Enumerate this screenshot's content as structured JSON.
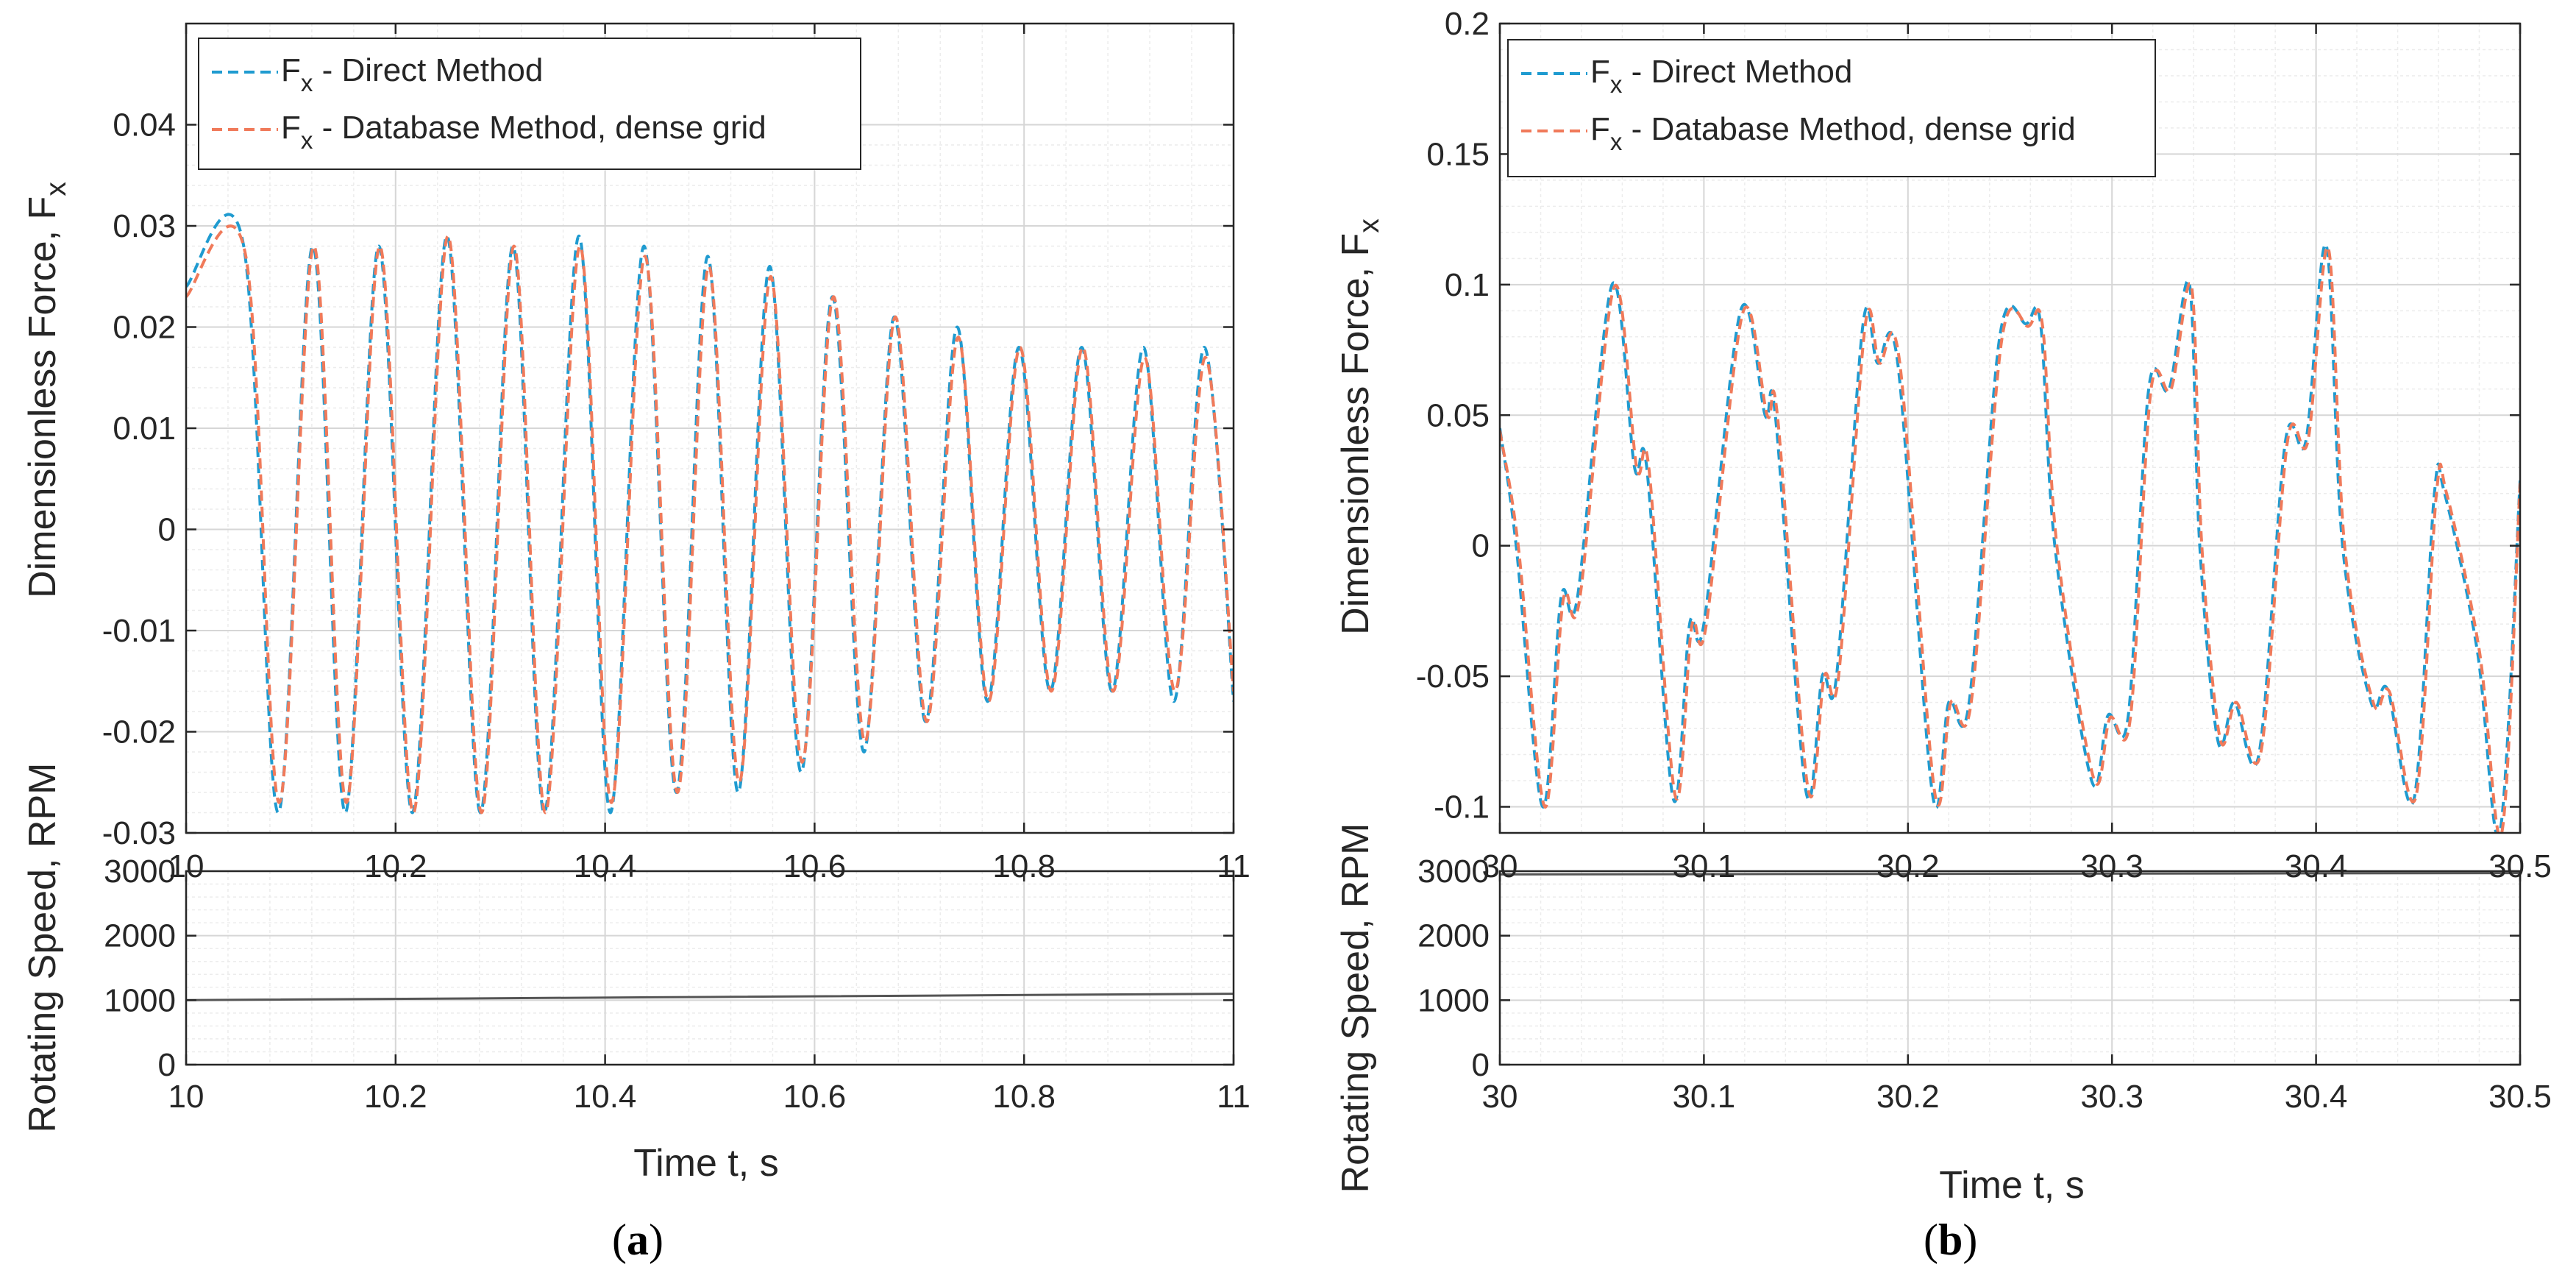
{
  "colors": {
    "direct": "#1f9bd0",
    "database": "#f07a5a",
    "rpm": "#555555",
    "grid_minor": "#ececec",
    "grid_major": "#d6d6d6",
    "axis": "#262626"
  },
  "chart_data": [
    {
      "id": "a",
      "caption": "(a)",
      "caption_letter": "a",
      "force": {
        "type": "line",
        "xlim": [
          10,
          11
        ],
        "ylim": [
          -0.03,
          0.05
        ],
        "xticks": [
          "10",
          "10.2",
          "10.4",
          "10.6",
          "10.8",
          "11"
        ],
        "xtick_values": [
          10,
          10.2,
          10.4,
          10.6,
          10.8,
          11
        ],
        "yticks": [
          "-0.03",
          "-0.02",
          "-0.01",
          "0",
          "0.01",
          "0.02",
          "0.03",
          "0.04"
        ],
        "ytick_values": [
          -0.03,
          -0.02,
          -0.01,
          0,
          0.01,
          0.02,
          0.03,
          0.04
        ],
        "ylabel": "Dimensionless Force, F",
        "ylabel_sub": "x",
        "legend": {
          "placement": "top-left",
          "entries": [
            {
              "prefix": "F",
              "sub": "x",
              "text": " - Direct Method",
              "series": "direct"
            },
            {
              "prefix": "F",
              "sub": "x",
              "text": " - Database Method, dense grid",
              "series": "database"
            }
          ]
        },
        "series": [
          {
            "name": "Direct Method",
            "color_key": "direct",
            "x": [
              10.0,
              10.055,
              10.088,
              10.121,
              10.152,
              10.184,
              10.216,
              10.249,
              10.281,
              10.312,
              10.342,
              10.375,
              10.405,
              10.437,
              10.468,
              10.498,
              10.527,
              10.557,
              10.587,
              10.617,
              10.647,
              10.676,
              10.706,
              10.736,
              10.765,
              10.795,
              10.825,
              10.855,
              10.884,
              10.914,
              10.943,
              10.972,
              11.0
            ],
            "y": [
              0.024,
              0.028,
              -0.028,
              0.028,
              -0.028,
              0.028,
              -0.028,
              0.029,
              -0.028,
              0.028,
              -0.028,
              0.029,
              -0.028,
              0.028,
              -0.026,
              0.027,
              -0.026,
              0.026,
              -0.024,
              0.023,
              -0.022,
              0.021,
              -0.019,
              0.02,
              -0.017,
              0.018,
              -0.016,
              0.018,
              -0.016,
              0.018,
              -0.017,
              0.018,
              -0.017
            ]
          },
          {
            "name": "Database Method, dense grid",
            "color_key": "database",
            "x": [
              10.0,
              10.057,
              10.089,
              10.122,
              10.153,
              10.185,
              10.217,
              10.25,
              10.282,
              10.313,
              10.343,
              10.376,
              10.406,
              10.438,
              10.469,
              10.499,
              10.528,
              10.558,
              10.588,
              10.618,
              10.648,
              10.677,
              10.707,
              10.737,
              10.766,
              10.796,
              10.826,
              10.856,
              10.885,
              10.915,
              10.944,
              10.973,
              11.0
            ],
            "y": [
              0.023,
              0.027,
              -0.027,
              0.028,
              -0.027,
              0.028,
              -0.028,
              0.029,
              -0.028,
              0.028,
              -0.028,
              0.028,
              -0.027,
              0.027,
              -0.026,
              0.026,
              -0.025,
              0.025,
              -0.023,
              0.023,
              -0.021,
              0.021,
              -0.019,
              0.019,
              -0.017,
              0.018,
              -0.016,
              0.018,
              -0.016,
              0.017,
              -0.016,
              0.017,
              -0.016
            ]
          }
        ]
      },
      "rpm": {
        "type": "line",
        "xlim": [
          10,
          11
        ],
        "ylim": [
          0,
          3000
        ],
        "xticks": [
          "10",
          "10.2",
          "10.4",
          "10.6",
          "10.8",
          "11"
        ],
        "xtick_values": [
          10,
          10.2,
          10.4,
          10.6,
          10.8,
          11
        ],
        "yticks": [
          "0",
          "1000",
          "2000",
          "3000"
        ],
        "ytick_values": [
          0,
          1000,
          2000,
          3000
        ],
        "ylabel": "Rotating Speed, RPM",
        "xlabel": "Time t, s",
        "series": [
          {
            "name": "Rotating speed",
            "color_key": "rpm",
            "x": [
              10,
              11
            ],
            "y": [
              1000,
              1100
            ]
          }
        ]
      }
    },
    {
      "id": "b",
      "caption": "(b)",
      "caption_letter": "b",
      "force": {
        "type": "line",
        "xlim": [
          30,
          30.5
        ],
        "ylim": [
          -0.11,
          0.2
        ],
        "xticks": [
          "30",
          "30.1",
          "30.2",
          "30.3",
          "30.4",
          "30.5"
        ],
        "xtick_values": [
          30,
          30.1,
          30.2,
          30.3,
          30.4,
          30.5
        ],
        "yticks": [
          "-0.1",
          "-0.05",
          "0",
          "0.05",
          "0.1",
          "0.15",
          "0.2"
        ],
        "ytick_values": [
          -0.1,
          -0.05,
          0,
          0.05,
          0.1,
          0.15,
          0.2
        ],
        "ylabel": "Dimensionless Force, F",
        "ylabel_sub": "x",
        "legend": {
          "placement": "top-left",
          "entries": [
            {
              "prefix": "F",
              "sub": "x",
              "text": " - Direct Method",
              "series": "direct"
            },
            {
              "prefix": "F",
              "sub": "x",
              "text": " - Database Method, dense grid",
              "series": "database"
            }
          ]
        },
        "series": [
          {
            "name": "Direct Method",
            "color_key": "direct",
            "x": [
              30.0,
              30.008,
              30.021,
              30.03,
              30.038,
              30.055,
              30.066,
              30.072,
              30.085,
              30.093,
              30.1,
              30.118,
              30.13,
              30.135,
              30.15,
              30.158,
              30.165,
              30.178,
              30.185,
              30.195,
              30.212,
              30.22,
              30.23,
              30.245,
              30.258,
              30.265,
              30.272,
              30.29,
              30.298,
              30.308,
              30.318,
              30.328,
              30.338,
              30.343,
              30.352,
              30.36,
              30.372,
              30.385,
              30.395,
              30.405,
              30.413,
              30.427,
              30.435,
              30.448,
              30.458,
              30.463,
              30.479,
              30.49,
              30.5
            ],
            "y": [
              0.045,
              0.0,
              -0.1,
              -0.02,
              -0.02,
              0.1,
              0.03,
              0.03,
              -0.097,
              -0.03,
              -0.03,
              0.09,
              0.05,
              0.05,
              -0.094,
              -0.05,
              -0.05,
              0.085,
              0.07,
              0.07,
              -0.095,
              -0.06,
              -0.06,
              0.08,
              0.085,
              0.085,
              0.0,
              -0.09,
              -0.065,
              -0.065,
              0.06,
              0.06,
              0.1,
              0.0,
              -0.075,
              -0.06,
              -0.08,
              0.04,
              0.04,
              0.115,
              0.0,
              -0.06,
              -0.055,
              -0.097,
              0.02,
              0.02,
              -0.04,
              -0.11,
              0.025
            ]
          },
          {
            "name": "Database Method, dense grid",
            "color_key": "database",
            "x": [
              30.0,
              30.009,
              30.022,
              30.031,
              30.039,
              30.056,
              30.067,
              30.073,
              30.086,
              30.094,
              30.101,
              30.119,
              30.131,
              30.136,
              30.151,
              30.159,
              30.166,
              30.179,
              30.186,
              30.196,
              30.213,
              30.221,
              30.231,
              30.246,
              30.259,
              30.266,
              30.273,
              30.291,
              30.299,
              30.309,
              30.319,
              30.329,
              30.339,
              30.344,
              30.353,
              30.361,
              30.373,
              30.386,
              30.396,
              30.406,
              30.414,
              30.428,
              30.436,
              30.449,
              30.459,
              30.464,
              30.48,
              30.491,
              30.5
            ],
            "y": [
              0.044,
              0.0,
              -0.1,
              -0.021,
              -0.021,
              0.099,
              0.03,
              0.03,
              -0.096,
              -0.031,
              -0.031,
              0.089,
              0.05,
              0.05,
              -0.093,
              -0.05,
              -0.05,
              0.084,
              0.07,
              0.07,
              -0.094,
              -0.06,
              -0.06,
              0.079,
              0.084,
              0.084,
              0.0,
              -0.089,
              -0.066,
              -0.066,
              0.059,
              0.06,
              0.099,
              0.0,
              -0.074,
              -0.06,
              -0.079,
              0.04,
              0.04,
              0.114,
              0.0,
              -0.06,
              -0.056,
              -0.096,
              0.02,
              0.02,
              -0.04,
              -0.11,
              0.024
            ]
          }
        ]
      },
      "rpm": {
        "type": "line",
        "xlim": [
          30,
          30.5
        ],
        "ylim": [
          0,
          3000
        ],
        "xticks": [
          "30",
          "30.1",
          "30.2",
          "30.3",
          "30.4",
          "30.5"
        ],
        "xtick_values": [
          30,
          30.1,
          30.2,
          30.3,
          30.4,
          30.5
        ],
        "yticks": [
          "0",
          "1000",
          "2000",
          "3000"
        ],
        "ytick_values": [
          0,
          1000,
          2000,
          3000
        ],
        "ylabel": "Rotating Speed, RPM",
        "xlabel": "Time t, s",
        "series": [
          {
            "name": "Rotating speed",
            "color_key": "rpm",
            "x": [
              30,
              30.5
            ],
            "y": [
              2950,
              2970
            ]
          }
        ]
      }
    }
  ]
}
